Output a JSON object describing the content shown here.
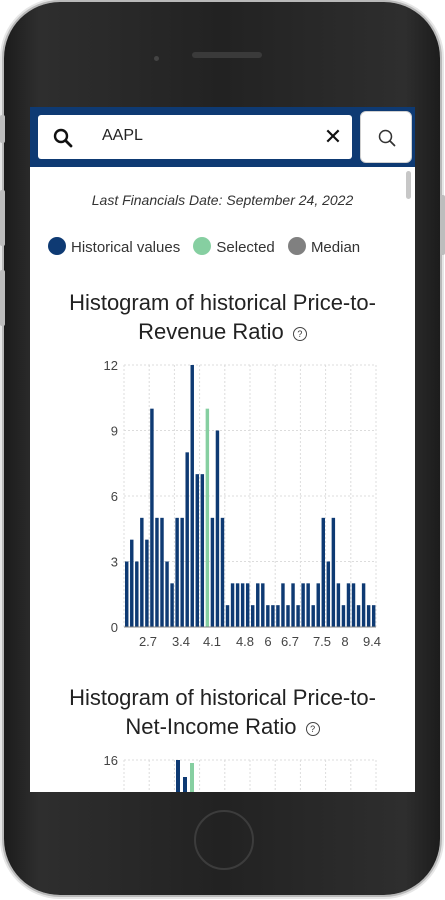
{
  "search": {
    "query": "AAPL"
  },
  "last_financials_date": "Last Financials Date: September 24, 2022",
  "legend": [
    {
      "label": "Historical values",
      "color": "#0e3a73"
    },
    {
      "label": "Selected",
      "color": "#86cfa1"
    },
    {
      "label": "Median",
      "color": "#808080"
    }
  ],
  "chart1": {
    "title_line1": "Histogram of historical Price-to-",
    "title_line2": "Revenue Ratio",
    "help_icon": "?"
  },
  "chart2": {
    "title_line1": "Histogram of historical Price-to-",
    "title_line2": "Net-Income Ratio",
    "help_icon": "?",
    "ymax_label": "16"
  },
  "chart_data": [
    {
      "type": "bar",
      "title": "Histogram of historical Price-to-Revenue Ratio",
      "xticks": [
        "2.7",
        "3.4",
        "4.1",
        "4.8",
        "6",
        "6.7",
        "7.5",
        "8",
        "9.4"
      ],
      "yticks": [
        "0",
        "3",
        "6",
        "9",
        "12"
      ],
      "ylim": [
        0,
        12
      ],
      "grid": true,
      "series": [
        {
          "values": [
            3,
            4,
            3,
            5,
            4,
            10,
            5,
            5,
            3,
            2,
            5,
            5,
            8,
            12,
            7,
            7,
            10,
            5,
            9,
            5,
            1,
            2,
            2,
            2,
            2,
            1,
            2,
            2,
            1,
            1,
            1,
            2,
            1,
            2,
            1,
            2,
            2,
            1,
            2,
            5,
            3,
            5,
            2,
            1,
            2,
            2,
            1,
            2,
            1,
            1
          ],
          "selected_index": 16,
          "color": "#0e3a73",
          "selected_color": "#86cfa1"
        }
      ]
    },
    {
      "type": "bar",
      "title": "Histogram of historical Price-to-Net-Income Ratio",
      "yticks": [
        "16"
      ],
      "grid": true
    }
  ]
}
